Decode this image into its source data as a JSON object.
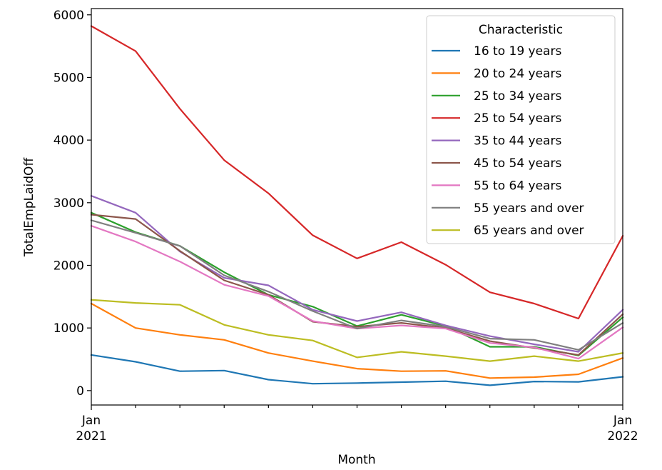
{
  "chart_data": {
    "type": "line",
    "title": "",
    "xlabel": "Month",
    "ylabel": "TotalEmpLaidOff",
    "x": [
      "2021-01",
      "2021-02",
      "2021-03",
      "2021-04",
      "2021-05",
      "2021-06",
      "2021-07",
      "2021-08",
      "2021-09",
      "2021-10",
      "2021-11",
      "2021-12",
      "2022-01"
    ],
    "x_tick_labels": [
      {
        "month": "Jan",
        "year": "2021"
      },
      {
        "month": "Jan",
        "year": "2022"
      }
    ],
    "ylim": [
      -230,
      6100
    ],
    "yticks": [
      "0",
      "1000",
      "2000",
      "3000",
      "4000",
      "5000",
      "6000"
    ],
    "grid": false,
    "legend": {
      "title": "Characteristic",
      "placement": "upper-right"
    },
    "series": [
      {
        "name": "16 to 19 years",
        "color": "#1f77b4",
        "values": [
          570,
          460,
          310,
          320,
          175,
          110,
          120,
          135,
          150,
          85,
          145,
          140,
          220
        ]
      },
      {
        "name": "20 to 24 years",
        "color": "#ff7f0e",
        "values": [
          1390,
          1000,
          890,
          810,
          600,
          470,
          350,
          310,
          315,
          200,
          215,
          260,
          520
        ]
      },
      {
        "name": "25 to 34 years",
        "color": "#2ca02c",
        "values": [
          2840,
          2530,
          2310,
          1890,
          1530,
          1340,
          1030,
          1210,
          1030,
          700,
          700,
          560,
          1170
        ]
      },
      {
        "name": "25 to 54 years",
        "color": "#d62728",
        "values": [
          5820,
          5420,
          4500,
          3680,
          3150,
          2480,
          2110,
          2370,
          2010,
          1570,
          1390,
          1150,
          2470
        ]
      },
      {
        "name": "35 to 44 years",
        "color": "#9467bd",
        "values": [
          3110,
          2840,
          2220,
          1800,
          1680,
          1290,
          1110,
          1250,
          1040,
          870,
          740,
          620,
          1290
        ]
      },
      {
        "name": "45 to 54 years",
        "color": "#8c564b",
        "values": [
          2810,
          2740,
          2230,
          1760,
          1530,
          1100,
          1020,
          1080,
          1000,
          790,
          680,
          570,
          1220
        ]
      },
      {
        "name": "55 to 64 years",
        "color": "#e377c2",
        "values": [
          2630,
          2380,
          2060,
          1690,
          1510,
          1110,
          990,
          1040,
          990,
          760,
          690,
          510,
          1010
        ]
      },
      {
        "name": "55 years and over",
        "color": "#7f7f7f",
        "values": [
          2720,
          2520,
          2310,
          1840,
          1580,
          1270,
          990,
          1120,
          1020,
          830,
          810,
          650,
          1080
        ]
      },
      {
        "name": "65 years and over",
        "color": "#bcbd22",
        "values": [
          1450,
          1400,
          1370,
          1050,
          890,
          800,
          530,
          620,
          550,
          470,
          550,
          470,
          600
        ]
      }
    ]
  }
}
